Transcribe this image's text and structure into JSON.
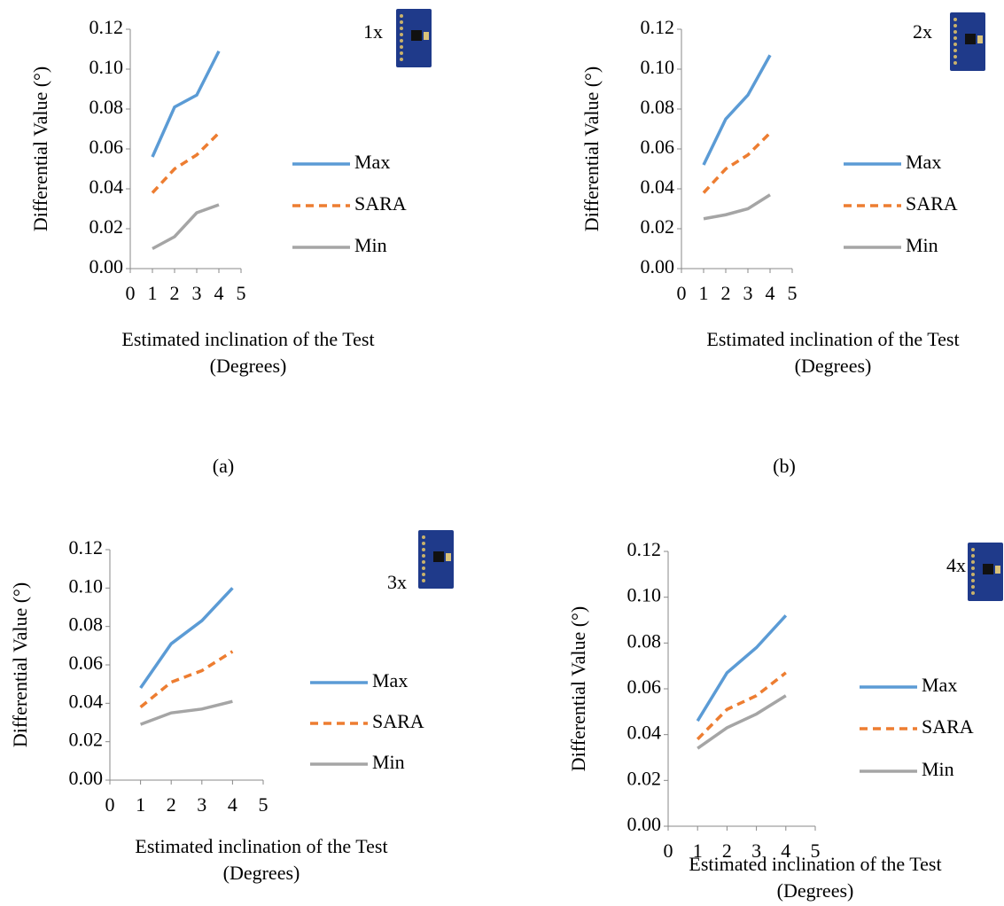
{
  "chart_data": [
    {
      "type": "line",
      "annotation": "1x",
      "panel_label": "(a)",
      "x_label": "Estimated inclination of the Test (Degrees)",
      "y_label": "Differential Value (°)",
      "x": [
        1,
        2,
        3,
        4
      ],
      "xlim": [
        0,
        5
      ],
      "xticks": [
        0,
        1,
        2,
        3,
        4,
        5
      ],
      "ylim": [
        0,
        0.12
      ],
      "yticks": [
        {
          "value": 0,
          "label": "0.00"
        },
        {
          "value": 0.02,
          "label": "0.02"
        },
        {
          "value": 0.04,
          "label": "0.04"
        },
        {
          "value": 0.06,
          "label": "0.06"
        },
        {
          "value": 0.08,
          "label": "0.08"
        },
        {
          "value": 0.1,
          "label": "0.10"
        },
        {
          "value": 0.12,
          "label": "0.12"
        }
      ],
      "series": [
        {
          "name": "Max",
          "color": "#5b9bd5",
          "line_style": "solid",
          "values": [
            0.056,
            0.081,
            0.087,
            0.109
          ]
        },
        {
          "name": "SARA",
          "color": "#ed7d31",
          "line_style": "dashed",
          "values": [
            0.038,
            0.05,
            0.057,
            0.068
          ]
        },
        {
          "name": "Min",
          "color": "#a5a5a5",
          "line_style": "solid",
          "values": [
            0.01,
            0.016,
            0.028,
            0.032
          ]
        }
      ]
    },
    {
      "type": "line",
      "annotation": "2x",
      "panel_label": "(b)",
      "x_label": "Estimated inclination of the Test (Degrees)",
      "y_label": "Differential Value (°)",
      "x": [
        1,
        2,
        3,
        4
      ],
      "xlim": [
        0,
        5
      ],
      "xticks": [
        0,
        1,
        2,
        3,
        4,
        5
      ],
      "ylim": [
        0,
        0.12
      ],
      "yticks": [
        {
          "value": 0,
          "label": "0.00"
        },
        {
          "value": 0.02,
          "label": "0.02"
        },
        {
          "value": 0.04,
          "label": "0.04"
        },
        {
          "value": 0.06,
          "label": "0.06"
        },
        {
          "value": 0.08,
          "label": "0.08"
        },
        {
          "value": 0.1,
          "label": "0.10"
        },
        {
          "value": 0.12,
          "label": "0.12"
        }
      ],
      "series": [
        {
          "name": "Max",
          "color": "#5b9bd5",
          "line_style": "solid",
          "values": [
            0.052,
            0.075,
            0.087,
            0.107
          ]
        },
        {
          "name": "SARA",
          "color": "#ed7d31",
          "line_style": "dashed",
          "values": [
            0.038,
            0.05,
            0.057,
            0.068
          ]
        },
        {
          "name": "Min",
          "color": "#a5a5a5",
          "line_style": "solid",
          "values": [
            0.025,
            0.027,
            0.03,
            0.037
          ]
        }
      ]
    },
    {
      "type": "line",
      "annotation": "3x",
      "x_label": "Estimated inclination of the Test (Degrees)",
      "y_label": "Differential Value (°)",
      "x": [
        1,
        2,
        3,
        4
      ],
      "xlim": [
        0,
        5
      ],
      "xticks": [
        0,
        1,
        2,
        3,
        4,
        5
      ],
      "ylim": [
        0,
        0.12
      ],
      "yticks": [
        {
          "value": 0,
          "label": "0.00"
        },
        {
          "value": 0.02,
          "label": "0.02"
        },
        {
          "value": 0.04,
          "label": "0.04"
        },
        {
          "value": 0.06,
          "label": "0.06"
        },
        {
          "value": 0.08,
          "label": "0.08"
        },
        {
          "value": 0.1,
          "label": "0.10"
        },
        {
          "value": 0.12,
          "label": "0.12"
        }
      ],
      "series": [
        {
          "name": "Max",
          "color": "#5b9bd5",
          "line_style": "solid",
          "values": [
            0.048,
            0.071,
            0.083,
            0.1
          ]
        },
        {
          "name": "SARA",
          "color": "#ed7d31",
          "line_style": "dashed",
          "values": [
            0.038,
            0.051,
            0.057,
            0.067
          ]
        },
        {
          "name": "Min",
          "color": "#a5a5a5",
          "line_style": "solid",
          "values": [
            0.029,
            0.035,
            0.037,
            0.041
          ]
        }
      ]
    },
    {
      "type": "line",
      "annotation": "4x",
      "x_label": "Estimated inclination of the Test (Degrees)",
      "y_label": "Differential Value (°)",
      "x": [
        1,
        2,
        3,
        4
      ],
      "xlim": [
        0,
        5
      ],
      "xticks": [
        0,
        1,
        2,
        3,
        4,
        5
      ],
      "ylim": [
        0,
        0.12
      ],
      "yticks": [
        {
          "value": 0,
          "label": "0.00"
        },
        {
          "value": 0.02,
          "label": "0.02"
        },
        {
          "value": 0.04,
          "label": "0.04"
        },
        {
          "value": 0.06,
          "label": "0.06"
        },
        {
          "value": 0.08,
          "label": "0.08"
        },
        {
          "value": 0.1,
          "label": "0.10"
        },
        {
          "value": 0.12,
          "label": "0.12"
        }
      ],
      "series": [
        {
          "name": "Max",
          "color": "#5b9bd5",
          "line_style": "solid",
          "values": [
            0.046,
            0.067,
            0.078,
            0.092
          ]
        },
        {
          "name": "SARA",
          "color": "#ed7d31",
          "line_style": "dashed",
          "values": [
            0.038,
            0.051,
            0.057,
            0.067
          ]
        },
        {
          "name": "Min",
          "color": "#a5a5a5",
          "line_style": "solid",
          "values": [
            0.034,
            0.043,
            0.049,
            0.057
          ]
        }
      ]
    }
  ]
}
